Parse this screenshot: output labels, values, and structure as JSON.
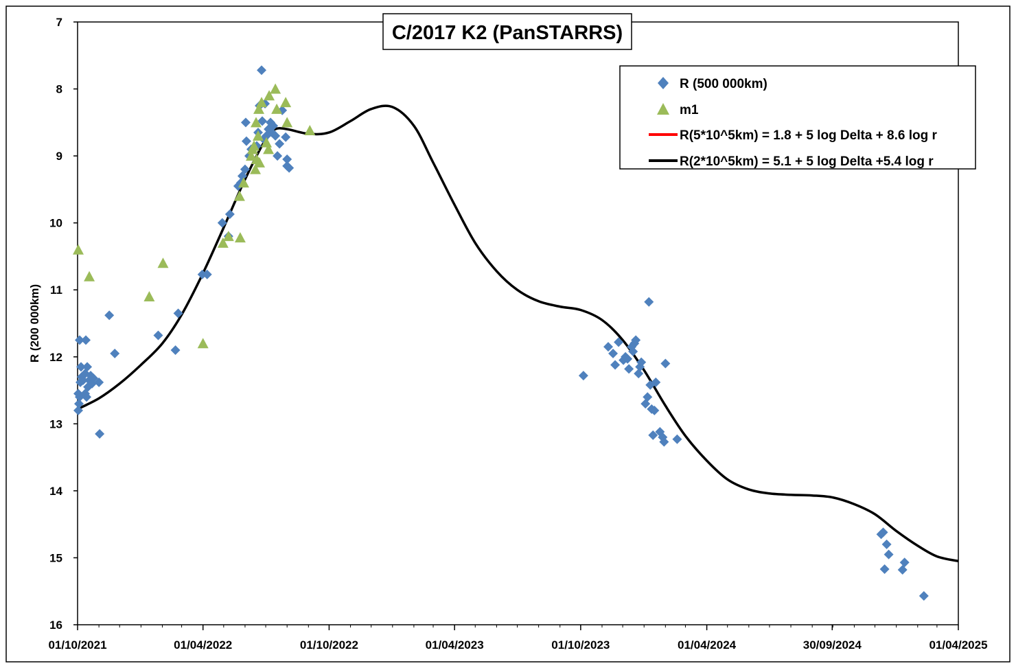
{
  "chart_data": {
    "type": "scatter",
    "title": "C/2017 K2 (PanSTARRS)",
    "xlabel": "",
    "ylabel": "R (200 000km)",
    "x_axis_kind": "date",
    "xlim": [
      "2021-10-01",
      "2025-04-01"
    ],
    "ylim": [
      16,
      7
    ],
    "y_inverted": true,
    "y_ticks": [
      7,
      8,
      9,
      10,
      11,
      12,
      13,
      14,
      15,
      16
    ],
    "x_tick_labels": [
      "01/10/2021",
      "01/04/2022",
      "01/10/2022",
      "01/04/2023",
      "01/10/2023",
      "01/04/2024",
      "30/09/2024",
      "01/04/2025"
    ],
    "x_tick_dates": [
      "2021-10-01",
      "2022-04-01",
      "2022-10-01",
      "2023-04-01",
      "2023-10-01",
      "2024-04-01",
      "2024-09-30",
      "2025-04-01"
    ],
    "grid": false,
    "legend_position": "top-right",
    "series": [
      {
        "name": "R (500 000km)",
        "type": "scatter",
        "marker": "diamond",
        "color": "#4F81BD",
        "points": [
          {
            "x": "2021-10-02",
            "y": 12.8
          },
          {
            "x": "2021-10-02",
            "y": 12.55
          },
          {
            "x": "2021-10-03",
            "y": 12.7
          },
          {
            "x": "2021-10-04",
            "y": 12.6
          },
          {
            "x": "2021-10-04",
            "y": 11.75
          },
          {
            "x": "2021-10-05",
            "y": 12.38
          },
          {
            "x": "2021-10-06",
            "y": 12.15
          },
          {
            "x": "2021-10-07",
            "y": 12.3
          },
          {
            "x": "2021-10-09",
            "y": 12.35
          },
          {
            "x": "2021-10-12",
            "y": 12.55
          },
          {
            "x": "2021-10-12",
            "y": 12.25
          },
          {
            "x": "2021-10-13",
            "y": 11.75
          },
          {
            "x": "2021-10-14",
            "y": 12.6
          },
          {
            "x": "2021-10-15",
            "y": 12.15
          },
          {
            "x": "2021-10-16",
            "y": 12.45
          },
          {
            "x": "2021-10-18",
            "y": 12.35
          },
          {
            "x": "2021-10-20",
            "y": 12.28
          },
          {
            "x": "2021-10-22",
            "y": 12.4
          },
          {
            "x": "2021-10-24",
            "y": 12.32
          },
          {
            "x": "2021-11-01",
            "y": 12.38
          },
          {
            "x": "2021-11-02",
            "y": 13.15
          },
          {
            "x": "2021-11-16",
            "y": 11.38
          },
          {
            "x": "2021-11-24",
            "y": 11.95
          },
          {
            "x": "2022-01-26",
            "y": 11.68
          },
          {
            "x": "2022-02-20",
            "y": 11.9
          },
          {
            "x": "2022-02-24",
            "y": 11.35
          },
          {
            "x": "2022-03-31",
            "y": 10.77
          },
          {
            "x": "2022-04-07",
            "y": 10.77
          },
          {
            "x": "2022-04-29",
            "y": 10.0
          },
          {
            "x": "2022-05-08",
            "y": 10.2
          },
          {
            "x": "2022-05-10",
            "y": 9.87
          },
          {
            "x": "2022-05-22",
            "y": 9.45
          },
          {
            "x": "2022-05-26",
            "y": 9.4
          },
          {
            "x": "2022-05-28",
            "y": 9.3
          },
          {
            "x": "2022-06-01",
            "y": 9.2
          },
          {
            "x": "2022-06-02",
            "y": 8.5
          },
          {
            "x": "2022-06-03",
            "y": 8.78
          },
          {
            "x": "2022-06-07",
            "y": 9.0
          },
          {
            "x": "2022-06-10",
            "y": 8.9
          },
          {
            "x": "2022-06-18",
            "y": 8.85
          },
          {
            "x": "2022-06-20",
            "y": 8.65
          },
          {
            "x": "2022-06-22",
            "y": 8.25
          },
          {
            "x": "2022-06-25",
            "y": 7.72
          },
          {
            "x": "2022-06-26",
            "y": 8.48
          },
          {
            "x": "2022-06-28",
            "y": 8.75
          },
          {
            "x": "2022-06-30",
            "y": 8.22
          },
          {
            "x": "2022-07-02",
            "y": 8.7
          },
          {
            "x": "2022-07-05",
            "y": 8.6
          },
          {
            "x": "2022-07-08",
            "y": 8.5
          },
          {
            "x": "2022-07-10",
            "y": 8.65
          },
          {
            "x": "2022-07-12",
            "y": 8.55
          },
          {
            "x": "2022-07-15",
            "y": 8.7
          },
          {
            "x": "2022-07-18",
            "y": 9.0
          },
          {
            "x": "2022-07-21",
            "y": 8.82
          },
          {
            "x": "2022-07-25",
            "y": 8.32
          },
          {
            "x": "2022-07-30",
            "y": 8.72
          },
          {
            "x": "2022-08-01",
            "y": 9.05
          },
          {
            "x": "2022-08-01",
            "y": 9.15
          },
          {
            "x": "2022-08-04",
            "y": 9.18
          },
          {
            "x": "2023-10-05",
            "y": 12.28
          },
          {
            "x": "2023-11-10",
            "y": 11.85
          },
          {
            "x": "2023-11-17",
            "y": 11.95
          },
          {
            "x": "2023-11-20",
            "y": 12.12
          },
          {
            "x": "2023-11-25",
            "y": 11.78
          },
          {
            "x": "2023-12-02",
            "y": 12.05
          },
          {
            "x": "2023-12-05",
            "y": 12.0
          },
          {
            "x": "2023-12-08",
            "y": 12.03
          },
          {
            "x": "2023-12-10",
            "y": 12.18
          },
          {
            "x": "2023-12-14",
            "y": 11.85
          },
          {
            "x": "2023-12-16",
            "y": 11.92
          },
          {
            "x": "2023-12-18",
            "y": 11.8
          },
          {
            "x": "2023-12-20",
            "y": 11.75
          },
          {
            "x": "2023-12-24",
            "y": 12.25
          },
          {
            "x": "2023-12-26",
            "y": 12.15
          },
          {
            "x": "2023-12-28",
            "y": 12.08
          },
          {
            "x": "2024-01-03",
            "y": 12.7
          },
          {
            "x": "2024-01-06",
            "y": 12.6
          },
          {
            "x": "2024-01-08",
            "y": 11.18
          },
          {
            "x": "2024-01-10",
            "y": 12.42
          },
          {
            "x": "2024-01-12",
            "y": 12.78
          },
          {
            "x": "2024-01-14",
            "y": 13.17
          },
          {
            "x": "2024-01-16",
            "y": 12.8
          },
          {
            "x": "2024-01-18",
            "y": 12.38
          },
          {
            "x": "2024-01-24",
            "y": 13.12
          },
          {
            "x": "2024-01-28",
            "y": 13.2
          },
          {
            "x": "2024-01-30",
            "y": 13.27
          },
          {
            "x": "2024-02-01",
            "y": 12.1
          },
          {
            "x": "2024-02-18",
            "y": 13.23
          },
          {
            "x": "2024-12-10",
            "y": 14.65
          },
          {
            "x": "2024-12-13",
            "y": 14.62
          },
          {
            "x": "2024-12-15",
            "y": 15.17
          },
          {
            "x": "2024-12-18",
            "y": 14.8
          },
          {
            "x": "2024-12-21",
            "y": 14.95
          },
          {
            "x": "2025-01-10",
            "y": 15.18
          },
          {
            "x": "2025-01-13",
            "y": 15.07
          },
          {
            "x": "2025-02-10",
            "y": 15.57
          }
        ]
      },
      {
        "name": "m1",
        "type": "scatter",
        "marker": "triangle",
        "color": "#9BBB59",
        "points": [
          {
            "x": "2021-10-02",
            "y": 10.4
          },
          {
            "x": "2021-10-18",
            "y": 10.8
          },
          {
            "x": "2022-01-13",
            "y": 11.1
          },
          {
            "x": "2022-02-02",
            "y": 10.6
          },
          {
            "x": "2022-04-01",
            "y": 11.8
          },
          {
            "x": "2022-04-30",
            "y": 10.3
          },
          {
            "x": "2022-05-08",
            "y": 10.2
          },
          {
            "x": "2022-05-24",
            "y": 9.6
          },
          {
            "x": "2022-05-25",
            "y": 10.22
          },
          {
            "x": "2022-05-30",
            "y": 9.4
          },
          {
            "x": "2022-06-10",
            "y": 9.0
          },
          {
            "x": "2022-06-12",
            "y": 8.9
          },
          {
            "x": "2022-06-14",
            "y": 8.85
          },
          {
            "x": "2022-06-16",
            "y": 9.2
          },
          {
            "x": "2022-06-17",
            "y": 8.5
          },
          {
            "x": "2022-06-18",
            "y": 9.05
          },
          {
            "x": "2022-06-20",
            "y": 8.7
          },
          {
            "x": "2022-06-21",
            "y": 8.3
          },
          {
            "x": "2022-06-22",
            "y": 9.1
          },
          {
            "x": "2022-06-25",
            "y": 8.2
          },
          {
            "x": "2022-07-02",
            "y": 8.8
          },
          {
            "x": "2022-07-05",
            "y": 8.9
          },
          {
            "x": "2022-07-06",
            "y": 8.1
          },
          {
            "x": "2022-07-15",
            "y": 8.0
          },
          {
            "x": "2022-07-17",
            "y": 8.3
          },
          {
            "x": "2022-07-30",
            "y": 8.2
          },
          {
            "x": "2022-08-01",
            "y": 8.5
          },
          {
            "x": "2022-09-03",
            "y": 8.62
          }
        ]
      },
      {
        "name": "R(5*10^5km) = 1.8 + 5 log Delta + 8.6 log r",
        "type": "line",
        "color": "#FF0000",
        "points": []
      },
      {
        "name": "R(2*10^5km) = 5.1 + 5 log Delta +5.4 log r",
        "type": "line",
        "color": "#000000",
        "points": [
          {
            "x": "2021-10-01",
            "y": 12.78
          },
          {
            "x": "2021-11-01",
            "y": 12.62
          },
          {
            "x": "2021-12-01",
            "y": 12.4
          },
          {
            "x": "2022-01-01",
            "y": 12.12
          },
          {
            "x": "2022-02-01",
            "y": 11.8
          },
          {
            "x": "2022-03-01",
            "y": 11.37
          },
          {
            "x": "2022-04-01",
            "y": 10.75
          },
          {
            "x": "2022-05-01",
            "y": 10.07
          },
          {
            "x": "2022-06-01",
            "y": 9.35
          },
          {
            "x": "2022-07-01",
            "y": 8.75
          },
          {
            "x": "2022-07-15",
            "y": 8.6
          },
          {
            "x": "2022-08-01",
            "y": 8.6
          },
          {
            "x": "2022-09-01",
            "y": 8.67
          },
          {
            "x": "2022-10-01",
            "y": 8.65
          },
          {
            "x": "2022-11-01",
            "y": 8.48
          },
          {
            "x": "2022-12-01",
            "y": 8.3
          },
          {
            "x": "2023-01-01",
            "y": 8.27
          },
          {
            "x": "2023-02-01",
            "y": 8.55
          },
          {
            "x": "2023-03-01",
            "y": 9.1
          },
          {
            "x": "2023-04-01",
            "y": 9.73
          },
          {
            "x": "2023-05-01",
            "y": 10.3
          },
          {
            "x": "2023-06-01",
            "y": 10.72
          },
          {
            "x": "2023-07-01",
            "y": 11.0
          },
          {
            "x": "2023-08-01",
            "y": 11.17
          },
          {
            "x": "2023-09-01",
            "y": 11.25
          },
          {
            "x": "2023-10-01",
            "y": 11.3
          },
          {
            "x": "2023-11-01",
            "y": 11.45
          },
          {
            "x": "2023-12-01",
            "y": 11.75
          },
          {
            "x": "2024-01-01",
            "y": 12.2
          },
          {
            "x": "2024-02-01",
            "y": 12.73
          },
          {
            "x": "2024-03-01",
            "y": 13.18
          },
          {
            "x": "2024-04-01",
            "y": 13.55
          },
          {
            "x": "2024-05-01",
            "y": 13.83
          },
          {
            "x": "2024-06-01",
            "y": 13.98
          },
          {
            "x": "2024-07-01",
            "y": 14.04
          },
          {
            "x": "2024-08-01",
            "y": 14.06
          },
          {
            "x": "2024-09-01",
            "y": 14.07
          },
          {
            "x": "2024-10-01",
            "y": 14.1
          },
          {
            "x": "2024-11-01",
            "y": 14.2
          },
          {
            "x": "2024-12-01",
            "y": 14.35
          },
          {
            "x": "2025-01-01",
            "y": 14.6
          },
          {
            "x": "2025-02-01",
            "y": 14.82
          },
          {
            "x": "2025-03-01",
            "y": 14.98
          },
          {
            "x": "2025-04-01",
            "y": 15.05
          }
        ]
      }
    ]
  }
}
